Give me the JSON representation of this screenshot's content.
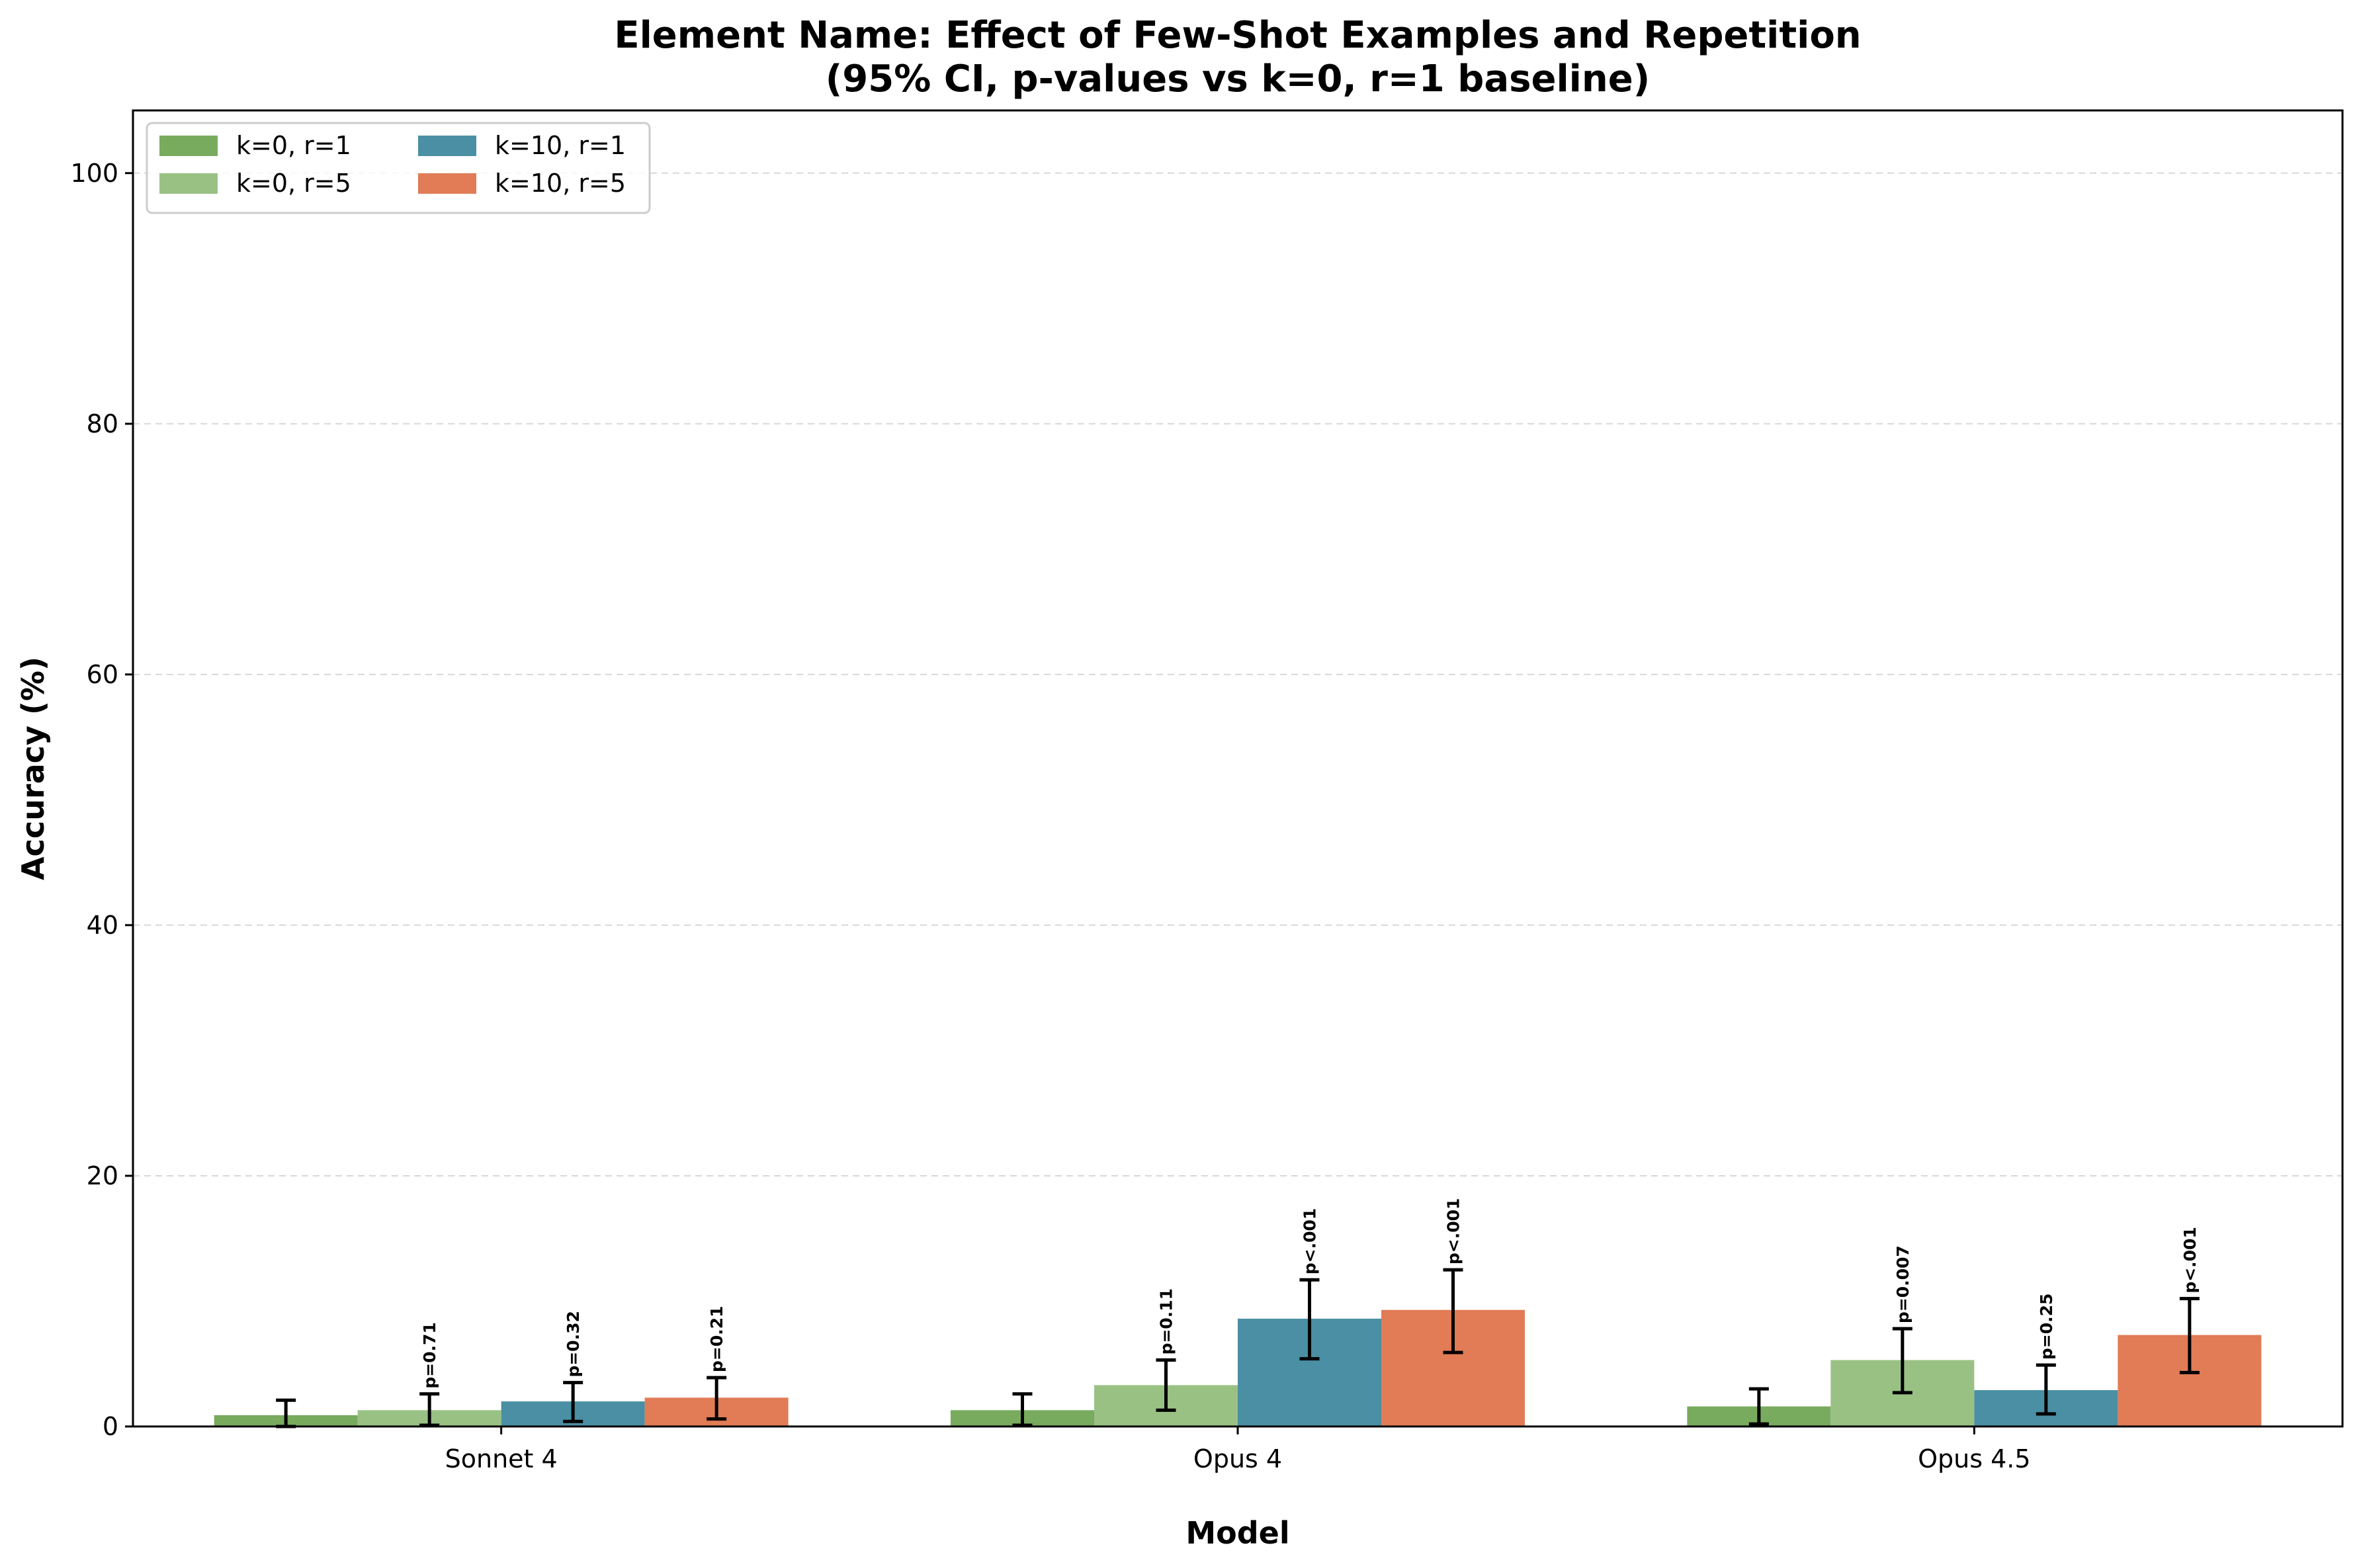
{
  "chart_data": {
    "type": "bar",
    "title_line1": "Element Name: Effect of Few-Shot Examples and Repetition",
    "title_line2": "(95% CI, p-values vs k=0, r=1 baseline)",
    "xlabel": "Model",
    "ylabel": "Accuracy (%)",
    "ylim": [
      0,
      105
    ],
    "yticks": [
      0,
      20,
      40,
      60,
      80,
      100
    ],
    "grid": "horizontal dashed",
    "legend_position": "top-left",
    "categories": [
      "Sonnet 4",
      "Opus 4",
      "Opus 4.5"
    ],
    "series": [
      {
        "name": "k=0, r=1",
        "color": "#78ab5e",
        "values": [
          0.9,
          1.3,
          1.6
        ],
        "ci_low": [
          0.0,
          0.1,
          0.2
        ],
        "ci_high": [
          2.1,
          2.6,
          3.0
        ],
        "pvalues": [
          "",
          "",
          ""
        ]
      },
      {
        "name": "k=0, r=5",
        "color": "#9ac184",
        "values": [
          1.3,
          3.3,
          5.3
        ],
        "ci_low": [
          0.1,
          1.3,
          2.7
        ],
        "ci_high": [
          2.6,
          5.3,
          7.8
        ],
        "pvalues": [
          "p=0.71",
          "p=0.11",
          "p=0.007"
        ]
      },
      {
        "name": "k=10, r=1",
        "color": "#4a8fa3",
        "values": [
          2.0,
          8.6,
          2.9
        ],
        "ci_low": [
          0.4,
          5.4,
          1.0
        ],
        "ci_high": [
          3.5,
          11.7,
          4.9
        ],
        "pvalues": [
          "p=0.32",
          "p<.001",
          "p=0.25"
        ]
      },
      {
        "name": "k=10, r=5",
        "color": "#e17c56",
        "values": [
          2.3,
          9.3,
          7.3
        ],
        "ci_low": [
          0.6,
          5.9,
          4.3
        ],
        "ci_high": [
          3.9,
          12.5,
          10.2
        ],
        "pvalues": [
          "p=0.21",
          "p<.001",
          "p<.001"
        ]
      }
    ]
  }
}
